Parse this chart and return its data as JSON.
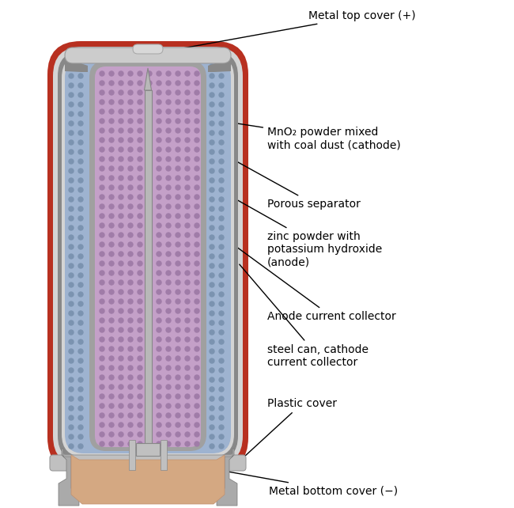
{
  "fig_width": 6.5,
  "fig_height": 6.42,
  "dpi": 100,
  "bg_color": "#ffffff",
  "outer_casing_color": "#b83020",
  "light_grey": "#d4d4d4",
  "mid_grey": "#aaaaaa",
  "dark_grey": "#888888",
  "cathode_color": "#9eb3d0",
  "cathode_dot_color": "#7b93b0",
  "anode_color": "#c4a0c8",
  "anode_dot_color": "#a07ca8",
  "separator_color": "#a0a0a0",
  "plastic_cover_color": "#d4a882",
  "metal_top_color": "#cccccc",
  "metal_bottom_color": "#c0c0c0",
  "labels": {
    "metal_top": "Metal top cover (+)",
    "mno2": "MnO₂ powder mixed\nwith coal dust (cathode)",
    "separator": "Porous separator",
    "zinc": "zinc powder with\npotassium hydroxide\n(anode)",
    "anode_collector": "Anode current collector",
    "steel_can": "steel can, cathode\ncurrent collector",
    "plastic": "Plastic cover",
    "metal_bottom": "Metal bottom cover (−)"
  }
}
